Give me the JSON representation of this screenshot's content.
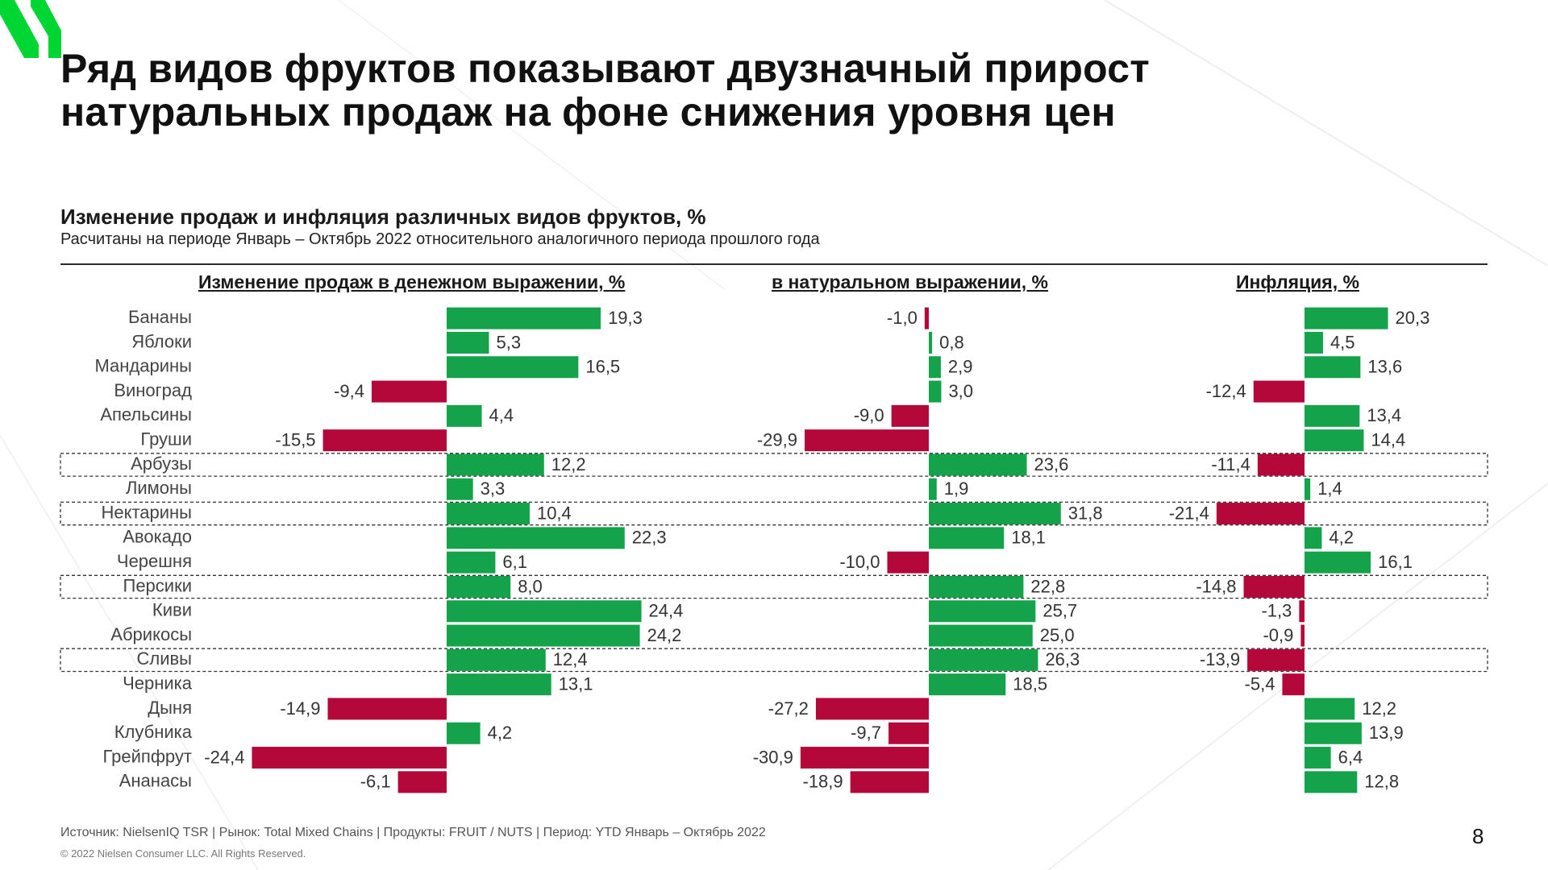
{
  "title_line1": "Ряд видов фруктов показывают двузначный прирост",
  "title_line2": "натуральных продаж на фоне снижения уровня цен",
  "chart_data": {
    "type": "bar",
    "orientation": "horizontal",
    "title": "Изменение продаж и инфляция различных видов фруктов, %",
    "subtitle": "Расчитаны на периоде Январь – Октябрь 2022 относительного аналогичного периода прошлого года",
    "categories": [
      "Бананы",
      "Яблоки",
      "Мандарины",
      "Виноград",
      "Апельсины",
      "Груши",
      "Арбузы",
      "Лимоны",
      "Нектарины",
      "Авокадо",
      "Черешня",
      "Персики",
      "Киви",
      "Абрикосы",
      "Сливы",
      "Черника",
      "Дыня",
      "Клубника",
      "Грейпфрут",
      "Ананасы"
    ],
    "highlighted_categories": [
      "Арбузы",
      "Нектарины",
      "Персики",
      "Сливы"
    ],
    "series": [
      {
        "name": "Изменение продаж в денежном выражении, %",
        "values": [
          19.3,
          5.3,
          16.5,
          -9.4,
          4.4,
          -15.5,
          12.2,
          3.3,
          10.4,
          22.3,
          6.1,
          8.0,
          24.4,
          24.2,
          12.4,
          13.1,
          -14.9,
          4.2,
          -24.4,
          -6.1
        ],
        "labels": [
          "19,3",
          "5,3",
          "16,5",
          "-9,4",
          "4,4",
          "-15,5",
          "12,2",
          "3,3",
          "10,4",
          "22,3",
          "6,1",
          "8,0",
          "24,4",
          "24,2",
          "12,4",
          "13,1",
          "-14,9",
          "4,2",
          "-24,4",
          "-6,1"
        ]
      },
      {
        "name": "в натуральном выражении, %",
        "values": [
          -1.0,
          0.8,
          2.9,
          3.0,
          -9.0,
          -29.9,
          23.6,
          1.9,
          31.8,
          18.1,
          -10.0,
          22.8,
          25.7,
          25.0,
          26.3,
          18.5,
          -27.2,
          -9.7,
          -30.9,
          -18.9
        ],
        "labels": [
          "-1,0",
          "0,8",
          "2,9",
          "3,0",
          "-9,0",
          "-29,9",
          "23,6",
          "1,9",
          "31,8",
          "18,1",
          "-10,0",
          "22,8",
          "25,7",
          "25,0",
          "26,3",
          "18,5",
          "-27,2",
          "-9,7",
          "-30,9",
          "-18,9"
        ]
      },
      {
        "name": "Инфляция, %",
        "values": [
          20.3,
          4.5,
          13.6,
          -12.4,
          13.4,
          14.4,
          -11.4,
          1.4,
          -21.4,
          4.2,
          16.1,
          -14.8,
          -1.3,
          -0.9,
          -13.9,
          -5.4,
          12.2,
          13.9,
          6.4,
          12.8
        ],
        "labels": [
          "20,3",
          "4,5",
          "13,6",
          "-12,4",
          "13,4",
          "14,4",
          "-11,4",
          "1,4",
          "-21,4",
          "4,2",
          "16,1",
          "-14,8",
          "-1,3",
          "-0,9",
          "-13,9",
          "-5,4",
          "12,2",
          "13,9",
          "6,4",
          "12,8"
        ]
      }
    ],
    "colors": {
      "positive": "#14a24a",
      "negative": "#b5083a"
    }
  },
  "footer": {
    "source": "Источник: NielsenIQ TSR | Рынок: Total Mixed Chains | Продукты: FRUIT / NUTS | Период: YTD Январь – Октябрь 2022",
    "copyright": "© 2022 Nielsen Consumer LLC. All Rights Reserved.",
    "page_number": "8"
  },
  "brand": {
    "accent": "#00d632"
  }
}
